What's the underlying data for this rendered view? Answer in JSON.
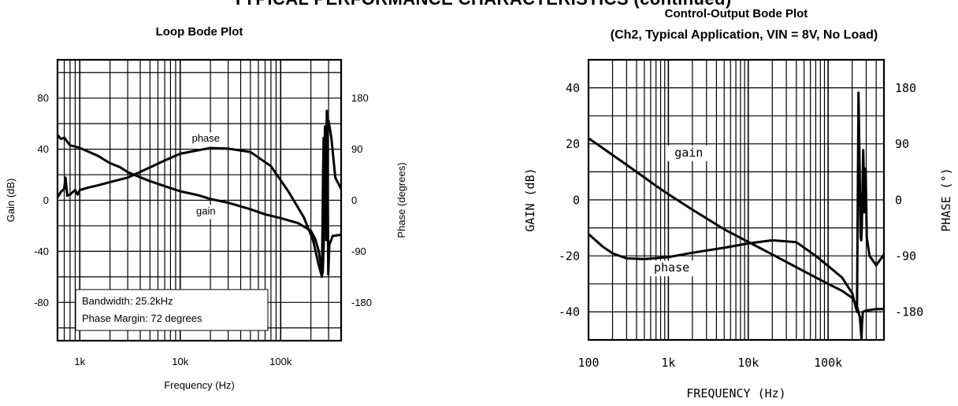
{
  "page": {
    "header": "TYPICAL PERFORMANCE CHARACTERISTICS (continued)"
  },
  "chart_data": [
    {
      "id": "left",
      "type": "line",
      "title": "Loop Bode Plot",
      "xlabel": "Frequency (Hz)",
      "ylabel": "Gain (dB)",
      "ylabel_right": "Phase (degrees)",
      "xscale": "log",
      "xlim": [
        600,
        400000
      ],
      "ylim": [
        -110,
        110
      ],
      "ylim_right": [
        -247.5,
        247.5
      ],
      "xticks": [
        {
          "v": 1000,
          "label": "1k"
        },
        {
          "v": 10000,
          "label": "10k"
        },
        {
          "v": 100000,
          "label": "100k"
        }
      ],
      "yticks": [
        {
          "v": -80,
          "label": "-80"
        },
        {
          "v": -40,
          "label": "-40"
        },
        {
          "v": 0,
          "label": "0"
        },
        {
          "v": 40,
          "label": "40"
        },
        {
          "v": 80,
          "label": "80"
        }
      ],
      "yticks_right": [
        {
          "v": -180,
          "label": "-180"
        },
        {
          "v": -90,
          "label": "-90"
        },
        {
          "v": 0,
          "label": "0"
        },
        {
          "v": 90,
          "label": "90"
        },
        {
          "v": 180,
          "label": "180"
        }
      ],
      "grid": true,
      "series": [
        {
          "name": "gain",
          "axis": "left",
          "points": [
            [
              600,
              51
            ],
            [
              650,
              48
            ],
            [
              700,
              49
            ],
            [
              800,
              43
            ],
            [
              900,
              42
            ],
            [
              1000,
              41
            ],
            [
              1500,
              35
            ],
            [
              2000,
              29
            ],
            [
              2500,
              26
            ],
            [
              3000,
              22
            ],
            [
              4000,
              18
            ],
            [
              5000,
              15
            ],
            [
              7000,
              11
            ],
            [
              10000,
              7
            ],
            [
              15000,
              4
            ],
            [
              20000,
              1
            ],
            [
              30000,
              -2
            ],
            [
              50000,
              -7
            ],
            [
              70000,
              -11
            ],
            [
              100000,
              -14
            ],
            [
              150000,
              -18
            ],
            [
              200000,
              -24
            ],
            [
              220000,
              -30
            ],
            [
              240000,
              -40
            ],
            [
              255000,
              -53
            ],
            [
              262000,
              -57
            ],
            [
              270000,
              -30
            ],
            [
              276000,
              55
            ],
            [
              279000,
              18
            ],
            [
              283000,
              -8
            ],
            [
              288000,
              70
            ],
            [
              292000,
              30
            ],
            [
              298000,
              -58
            ],
            [
              305000,
              -35
            ],
            [
              330000,
              -28
            ],
            [
              400000,
              -27
            ]
          ]
        },
        {
          "name": "phase",
          "axis": "right",
          "points": [
            [
              600,
              5
            ],
            [
              650,
              15
            ],
            [
              700,
              20
            ],
            [
              720,
              40
            ],
            [
              750,
              8
            ],
            [
              800,
              10
            ],
            [
              900,
              18
            ],
            [
              950,
              10
            ],
            [
              1000,
              18
            ],
            [
              1200,
              22
            ],
            [
              1500,
              26
            ],
            [
              2000,
              32
            ],
            [
              3000,
              40
            ],
            [
              5000,
              58
            ],
            [
              7000,
              70
            ],
            [
              10000,
              82
            ],
            [
              15000,
              88
            ],
            [
              20000,
              92
            ],
            [
              30000,
              91
            ],
            [
              50000,
              85
            ],
            [
              80000,
              60
            ],
            [
              120000,
              15
            ],
            [
              170000,
              -30
            ],
            [
              210000,
              -70
            ],
            [
              240000,
              -115
            ],
            [
              258000,
              -135
            ],
            [
              264000,
              40
            ],
            [
              268000,
              110
            ],
            [
              272000,
              20
            ],
            [
              276000,
              130
            ],
            [
              280000,
              80
            ],
            [
              285000,
              -70
            ],
            [
              290000,
              125
            ],
            [
              300000,
              140
            ],
            [
              320000,
              110
            ],
            [
              350000,
              40
            ],
            [
              400000,
              20
            ]
          ]
        }
      ],
      "annotations": [
        "phase",
        "gain"
      ],
      "legend_box": [
        "Bandwidth: 25.2kHz",
        "Phase Margin: 72 degrees"
      ]
    },
    {
      "id": "right",
      "type": "line",
      "title": "Control-Output Bode Plot",
      "subtitle": "(Ch2, Typical Application, VIN = 8V, No Load)",
      "xlabel": "FREQUENCY (Hz)",
      "ylabel": "GAIN (dB)",
      "ylabel_right": "PHASE (°)",
      "xscale": "log",
      "xlim": [
        100,
        500000
      ],
      "ylim": [
        -50,
        50
      ],
      "ylim_right": [
        -225,
        225
      ],
      "xticks": [
        {
          "v": 100,
          "label": "100"
        },
        {
          "v": 1000,
          "label": "1k"
        },
        {
          "v": 10000,
          "label": "10k"
        },
        {
          "v": 100000,
          "label": "100k"
        }
      ],
      "yticks": [
        {
          "v": -40,
          "label": "-40"
        },
        {
          "v": -20,
          "label": "-20"
        },
        {
          "v": 0,
          "label": "0"
        },
        {
          "v": 20,
          "label": "20"
        },
        {
          "v": 40,
          "label": "40"
        }
      ],
      "yticks_right": [
        {
          "v": -180,
          "label": "-180"
        },
        {
          "v": -90,
          "label": "-90"
        },
        {
          "v": 0,
          "label": "0"
        },
        {
          "v": 90,
          "label": "90"
        },
        {
          "v": 180,
          "label": "180"
        }
      ],
      "grid": true,
      "series": [
        {
          "name": "gain",
          "axis": "left",
          "points": [
            [
              100,
              22
            ],
            [
              150,
              18.5
            ],
            [
              200,
              16
            ],
            [
              300,
              12.5
            ],
            [
              500,
              8
            ],
            [
              700,
              5
            ],
            [
              1000,
              2
            ],
            [
              2000,
              -3.5
            ],
            [
              5000,
              -10.5
            ],
            [
              10000,
              -15
            ],
            [
              20000,
              -19.5
            ],
            [
              50000,
              -25.5
            ],
            [
              100000,
              -30
            ],
            [
              150000,
              -32.5
            ],
            [
              200000,
              -35
            ],
            [
              230000,
              -38
            ],
            [
              250000,
              -42
            ],
            [
              262000,
              -49.5
            ],
            [
              266000,
              -44
            ],
            [
              272000,
              -40
            ],
            [
              300000,
              -39.5
            ],
            [
              400000,
              -39
            ],
            [
              500000,
              -39
            ]
          ]
        },
        {
          "name": "phase",
          "axis": "right",
          "points": [
            [
              100,
              -55
            ],
            [
              150,
              -75
            ],
            [
              200,
              -86
            ],
            [
              300,
              -94
            ],
            [
              500,
              -95
            ],
            [
              1000,
              -92
            ],
            [
              2000,
              -85
            ],
            [
              5000,
              -77
            ],
            [
              10000,
              -70
            ],
            [
              20000,
              -65
            ],
            [
              40000,
              -68
            ],
            [
              70000,
              -90
            ],
            [
              100000,
              -106
            ],
            [
              150000,
              -125
            ],
            [
              200000,
              -150
            ],
            [
              230000,
              -180
            ],
            [
              240000,
              172
            ],
            [
              250000,
              20
            ],
            [
              255000,
              -60
            ],
            [
              260000,
              -65
            ],
            [
              265000,
              -40
            ],
            [
              275000,
              80
            ],
            [
              280000,
              40
            ],
            [
              285000,
              -20
            ],
            [
              295000,
              50
            ],
            [
              305000,
              -60
            ],
            [
              330000,
              -90
            ],
            [
              400000,
              -105
            ],
            [
              500000,
              -88
            ]
          ]
        }
      ],
      "annotations": [
        "gain",
        "phase"
      ]
    }
  ]
}
